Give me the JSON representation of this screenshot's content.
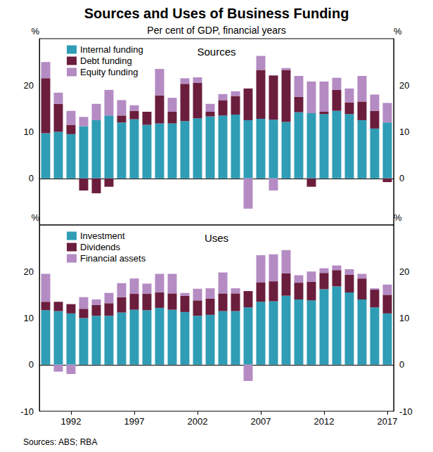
{
  "title": "Sources and Uses of Business Funding",
  "subtitle": "Per cent of GDP, financial years",
  "source": "Sources: ABS; RBA",
  "chart_data": [
    {
      "type": "bar",
      "title": "Sources",
      "y_label": "%",
      "categories": [
        null,
        null,
        1992,
        null,
        null,
        null,
        null,
        1997,
        null,
        null,
        null,
        null,
        2002,
        null,
        null,
        null,
        null,
        2007,
        null,
        null,
        null,
        null,
        2012,
        null,
        null,
        null,
        null,
        2017
      ],
      "series": [
        {
          "name": "Internal funding",
          "color": "#2f9db5",
          "values": [
            9.7,
            10,
            9.5,
            11.2,
            12.5,
            13.5,
            12,
            12.7,
            11.5,
            11.8,
            11.8,
            12.3,
            12.9,
            13.3,
            13.5,
            13.7,
            12.5,
            12.8,
            12.6,
            12.1,
            14.2,
            14,
            13.8,
            14.5,
            13.8,
            12.5,
            10.7,
            12
          ]
        },
        {
          "name": "Debt funding",
          "color": "#6b1d3c",
          "values": [
            11.8,
            6,
            2,
            -2.6,
            -3.2,
            -1.8,
            1.5,
            1.8,
            2.8,
            6,
            2.5,
            8,
            7.6,
            1,
            3.3,
            4,
            6.8,
            10.5,
            9.5,
            11.2,
            3.3,
            -1.8,
            0.5,
            4.5,
            2.5,
            4,
            3.8,
            -0.8
          ]
        },
        {
          "name": "Equity funding",
          "color": "#b48bc3",
          "values": [
            3.5,
            2.4,
            3,
            2,
            3.5,
            5.5,
            3.3,
            1.2,
            0,
            5.7,
            3,
            1.2,
            1.2,
            1.7,
            1.3,
            1,
            -6.5,
            3,
            -2.6,
            0.4,
            4.5,
            6.8,
            6.5,
            2.6,
            3,
            5.5,
            3.5,
            4.2
          ]
        }
      ],
      "ylim": [
        -10,
        30
      ],
      "yticks": [
        0,
        10,
        20
      ],
      "stacked": true,
      "grid": false,
      "legend": "top-left",
      "tick_labels": "y"
    },
    {
      "type": "bar",
      "title": "Uses",
      "y_label": "%",
      "categories": [
        null,
        null,
        1992,
        null,
        null,
        null,
        null,
        1997,
        null,
        null,
        null,
        null,
        2002,
        null,
        null,
        null,
        null,
        2007,
        null,
        null,
        null,
        null,
        2012,
        null,
        null,
        null,
        null,
        2017
      ],
      "series": [
        {
          "name": "Investment",
          "color": "#2f9db5",
          "values": [
            11.7,
            11.5,
            11,
            10,
            10.5,
            10.5,
            11.2,
            11.8,
            11.7,
            12.2,
            11.8,
            11.3,
            10.5,
            10.7,
            11.5,
            11.5,
            12.3,
            13.5,
            13.6,
            14.8,
            14,
            13.8,
            16.2,
            16.8,
            15.5,
            14,
            12.3,
            11
          ]
        },
        {
          "name": "Dividends",
          "color": "#6b1d3c",
          "values": [
            1.8,
            2,
            2,
            2,
            2.3,
            2.7,
            3.3,
            3.4,
            3.5,
            3.3,
            3.5,
            3.5,
            3.3,
            3.5,
            3.8,
            3.8,
            3.5,
            4.2,
            4.3,
            4.8,
            3.6,
            4,
            3.5,
            3.5,
            3.8,
            4.5,
            3.8,
            4
          ]
        },
        {
          "name": "Financial assets",
          "color": "#b48bc3",
          "values": [
            6,
            -1.5,
            -2,
            2.5,
            1.2,
            2.2,
            3,
            3.3,
            2.2,
            4,
            4.2,
            0.6,
            2.5,
            2.2,
            4.5,
            1.1,
            -3.5,
            5.8,
            5.8,
            5,
            1.6,
            2.2,
            1,
            1,
            1.2,
            1,
            0.3,
            2.2
          ]
        }
      ],
      "ylim": [
        -10,
        30
      ],
      "yticks": [
        -10,
        0,
        10,
        20
      ],
      "stacked": true,
      "grid": false,
      "legend": "top-left"
    }
  ]
}
